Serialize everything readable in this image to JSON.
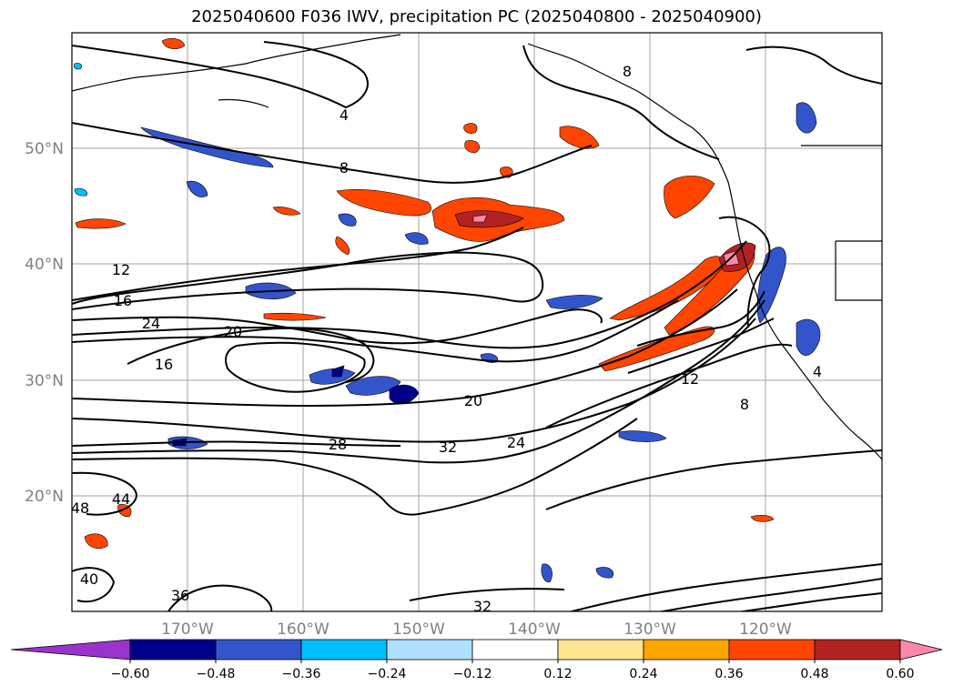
{
  "title": "2025040600 F036 IWV, precipitation PC (2025040800 - 2025040900)",
  "map": {
    "lon_range": [
      -178,
      -108
    ],
    "lat_range": [
      10,
      60
    ],
    "gridline_longitudes": [
      -170,
      -160,
      -150,
      -140,
      -130,
      -120
    ],
    "gridline_latitudes": [
      20,
      30,
      40,
      50
    ],
    "longitude_labels": [
      "170°W",
      "160°W",
      "150°W",
      "140°W",
      "130°W",
      "120°W"
    ],
    "latitude_labels": [
      "20°N",
      "30°N",
      "40°N",
      "50°N"
    ],
    "contour_labels": [
      "4",
      "8",
      "12",
      "16",
      "20",
      "24",
      "28",
      "32",
      "36",
      "40",
      "44",
      "48",
      "8",
      "12",
      "16",
      "20",
      "24",
      "32",
      "4",
      "8"
    ]
  },
  "colorbar": {
    "ticks": [
      "−0.60",
      "−0.48",
      "−0.36",
      "−0.24",
      "−0.12",
      "0.12",
      "0.24",
      "0.36",
      "0.48",
      "0.60"
    ],
    "colors": [
      "#9933cc",
      "#00008b",
      "#3355cc",
      "#00bfff",
      "#b0e0ff",
      "#ffffff",
      "#ffe58f",
      "#ffa500",
      "#ff4500",
      "#b22222",
      "#ff88aa"
    ]
  }
}
